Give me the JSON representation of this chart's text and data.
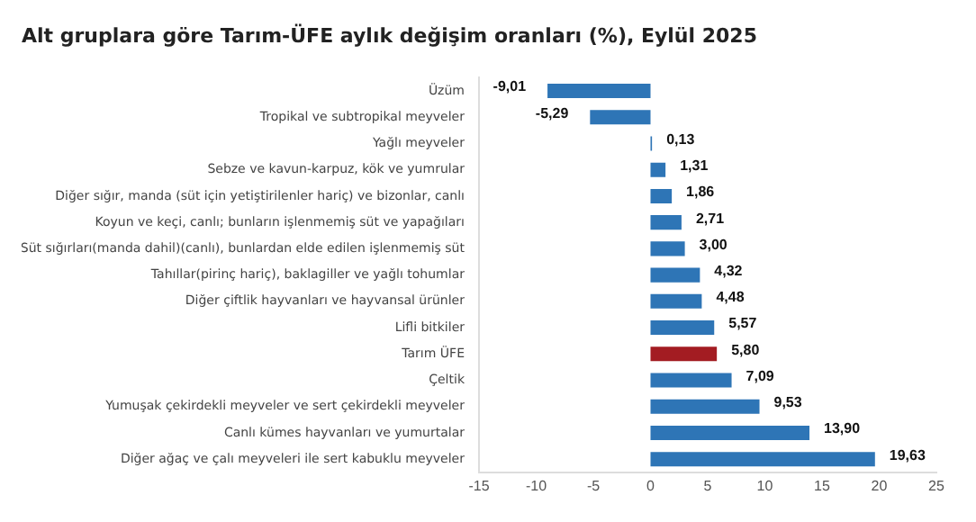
{
  "chart_data": {
    "type": "bar",
    "orientation": "horizontal",
    "title": "Alt gruplara göre Tarım-ÜFE aylık değişim oranları (%), Eylül 2025",
    "categories": [
      "Üzüm",
      "Tropikal ve subtropikal meyveler",
      "Yağlı meyveler",
      "Sebze ve kavun-karpuz, kök ve yumrular",
      "Diğer sığır, manda (süt için yetiştirilenler hariç) ve bizonlar, canlı",
      "Koyun ve keçi, canlı; bunların işlenmemiş süt ve yapağıları",
      "Süt sığırları(manda dahil)(canlı), bunlardan elde edilen işlenmemiş süt",
      "Tahıllar(pirinç hariç), baklagiller ve yağlı tohumlar",
      "Diğer çiftlik hayvanları ve hayvansal ürünler",
      "Lifli bitkiler",
      "Tarım ÜFE",
      "Çeltik",
      "Yumuşak çekirdekli meyveler ve sert çekirdekli meyveler",
      "Canlı kümes hayvanları ve yumurtalar",
      "Diğer ağaç ve çalı meyveleri ile sert kabuklu meyveler"
    ],
    "values": [
      -9.01,
      -5.29,
      0.13,
      1.31,
      1.86,
      2.71,
      3.0,
      4.32,
      4.48,
      5.57,
      5.8,
      7.09,
      9.53,
      13.9,
      19.63
    ],
    "value_labels": [
      "-9,01",
      "-5,29",
      "0,13",
      "1,31",
      "1,86",
      "2,71",
      "3,00",
      "4,32",
      "4,48",
      "5,57",
      "5,80",
      "7,09",
      "9,53",
      "13,90",
      "19,63"
    ],
    "colors": [
      "#2e75b6",
      "#2e75b6",
      "#2e75b6",
      "#2e75b6",
      "#2e75b6",
      "#2e75b6",
      "#2e75b6",
      "#2e75b6",
      "#2e75b6",
      "#2e75b6",
      "#a31c22",
      "#2e75b6",
      "#2e75b6",
      "#2e75b6",
      "#2e75b6"
    ],
    "xlim": [
      -15,
      25
    ],
    "xticks": [
      -15,
      -10,
      -5,
      0,
      5,
      10,
      15,
      20,
      25
    ],
    "grid": false,
    "legend": false
  }
}
